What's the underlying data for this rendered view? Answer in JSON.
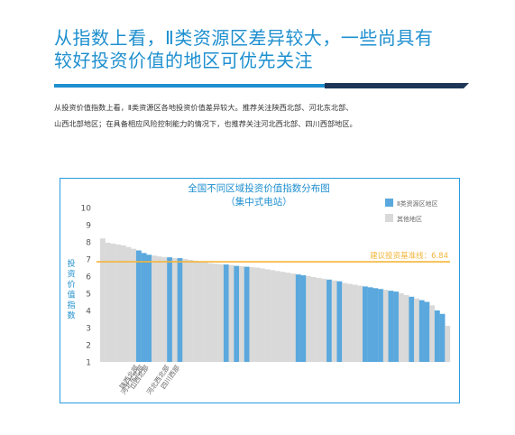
{
  "headline": {
    "line1": "从指数上看，Ⅱ类资源区差异较大，一些尚具有",
    "line2": "较好投资价值的地区可优先关注"
  },
  "body": {
    "line1": "从投资价值指数上看，Ⅱ类资源区各地投资价值差异较大。推荐关注陕西北部、河北东北部、",
    "line2": "山西北部地区；在具备相应风险控制能力的情况下，也推荐关注河北西北部、四川西部地区。"
  },
  "colors": {
    "accent": "#1e8fcf",
    "highlight_bar": "#5aa8dd",
    "other_bar": "#d9d9d9",
    "benchmark_line": "#f2b53a"
  },
  "chart_data": {
    "type": "bar",
    "title": "全国不同区域投资价值指数分布图",
    "subtitle": "（集中式电站）",
    "ylabel": "投资价值指数",
    "ylim": [
      1,
      10
    ],
    "yticks": [
      1,
      2,
      3,
      4,
      5,
      6,
      7,
      8,
      9,
      10
    ],
    "legend": [
      {
        "label": "Ⅱ类资源区地区",
        "color": "#5aa8dd"
      },
      {
        "label": "其他地区",
        "color": "#d9d9d9"
      }
    ],
    "legend_position": "top-right",
    "benchmark": {
      "label": "建议投资基准线：6.84",
      "value": 6.84
    },
    "labeled_regions": [
      "陕西北部",
      "河北东北部",
      "山西北部",
      "河北西北部",
      "四川西部"
    ],
    "values": [
      8.2,
      7.95,
      7.9,
      7.85,
      7.8,
      7.7,
      7.6,
      7.5,
      7.35,
      7.25,
      7.2,
      7.15,
      7.1,
      7.1,
      7.05,
      7.05,
      7.0,
      6.95,
      6.9,
      6.85,
      6.8,
      6.75,
      6.72,
      6.7,
      6.68,
      6.65,
      6.6,
      6.58,
      6.55,
      6.52,
      6.5,
      6.45,
      6.4,
      6.35,
      6.3,
      6.25,
      6.2,
      6.15,
      6.1,
      6.05,
      6.0,
      5.95,
      5.9,
      5.85,
      5.8,
      5.75,
      5.7,
      5.6,
      5.55,
      5.5,
      5.45,
      5.4,
      5.35,
      5.3,
      5.25,
      5.2,
      5.15,
      5.1,
      5.0,
      4.9,
      4.8,
      4.7,
      4.6,
      4.5,
      4.3,
      4.0,
      3.8,
      3.1
    ],
    "highlighted": [
      0,
      0,
      0,
      0,
      0,
      0,
      0,
      1,
      1,
      1,
      0,
      0,
      0,
      1,
      0,
      1,
      0,
      0,
      0,
      0,
      0,
      0,
      0,
      0,
      1,
      0,
      1,
      0,
      1,
      0,
      0,
      0,
      0,
      0,
      0,
      0,
      0,
      0,
      1,
      1,
      0,
      0,
      0,
      0,
      1,
      0,
      1,
      0,
      0,
      0,
      0,
      1,
      1,
      1,
      1,
      0,
      1,
      1,
      0,
      0,
      1,
      0,
      1,
      1,
      0,
      1,
      1,
      0
    ]
  }
}
